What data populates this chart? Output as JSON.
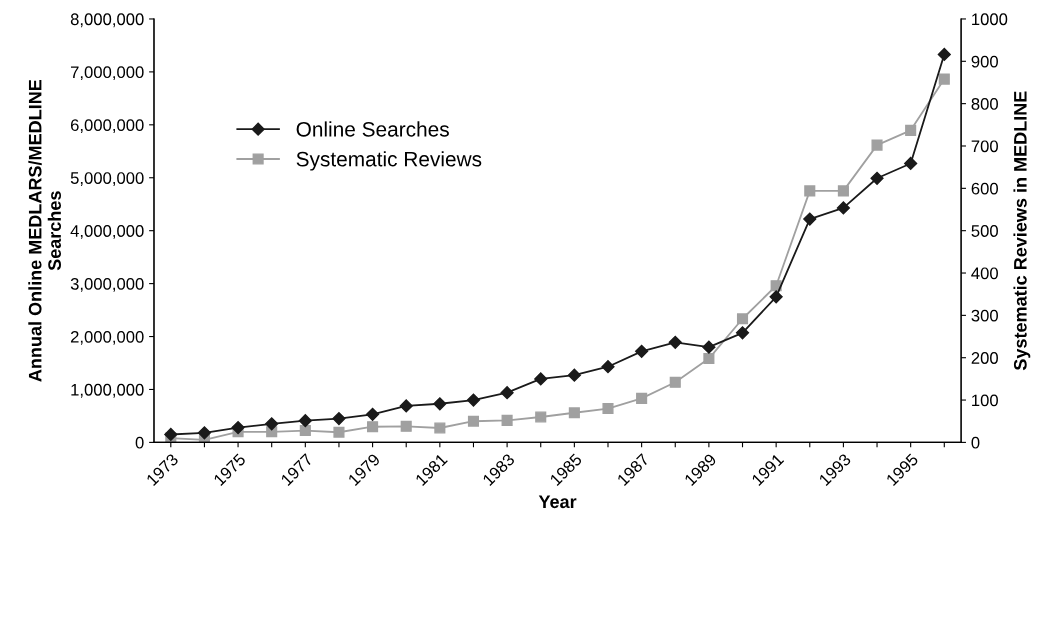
{
  "chart_data": {
    "type": "line",
    "xlabel": "Year",
    "ylabel": "Annual Online MEDLARS/MEDLINE\nSearches",
    "y2label": "Systematic Reviews in MEDLINE",
    "categories": [
      "1973",
      null,
      "1975",
      null,
      "1977",
      null,
      "1979",
      null,
      "1981",
      null,
      "1983",
      null,
      "1985",
      null,
      "1987",
      null,
      "1989",
      null,
      "1991",
      null,
      "1993",
      null,
      "1995",
      null
    ],
    "series": [
      {
        "name": "Online Searches",
        "color": "#1a1a1a",
        "marker": "diamond",
        "values": [
          150000,
          180000,
          280000,
          350000,
          410000,
          450000,
          530000,
          690000,
          730000,
          800000,
          940000,
          1200000,
          1270000,
          1430000,
          1720000,
          1890000,
          1800000,
          2070000,
          2750000,
          4220000,
          4430000,
          4990000,
          5270000,
          7330000
        ]
      },
      {
        "name": "Systematic Reviews",
        "color": "#a0a0a0",
        "marker": "square",
        "axis": "y2",
        "values": [
          10,
          6,
          25,
          25,
          28,
          24,
          37,
          38,
          34,
          50,
          52,
          60,
          70,
          80,
          104,
          142,
          198,
          292,
          370,
          594,
          594,
          702,
          737,
          858
        ]
      }
    ],
    "ylim": [
      0,
      8000000
    ],
    "yticks": [
      0,
      {
        "value": 1000000,
        "label": "1,000,000"
      },
      {
        "value": 2000000,
        "label": "2,000,000"
      },
      {
        "value": 3000000,
        "label": "3,000,000"
      },
      {
        "value": 4000000,
        "label": "4,000,000"
      },
      {
        "value": 5000000,
        "label": "5,000,000"
      },
      {
        "value": 6000000,
        "label": "6,000,000"
      },
      {
        "value": 7000000,
        "label": "7,000,000"
      },
      {
        "value": 8000000,
        "label": "8,000,000"
      }
    ],
    "y2lim": [
      0,
      1000
    ],
    "y2ticks": [
      0,
      100,
      200,
      300,
      400,
      500,
      600,
      700,
      800,
      900,
      1000
    ],
    "grid": false,
    "legend": "center left"
  }
}
